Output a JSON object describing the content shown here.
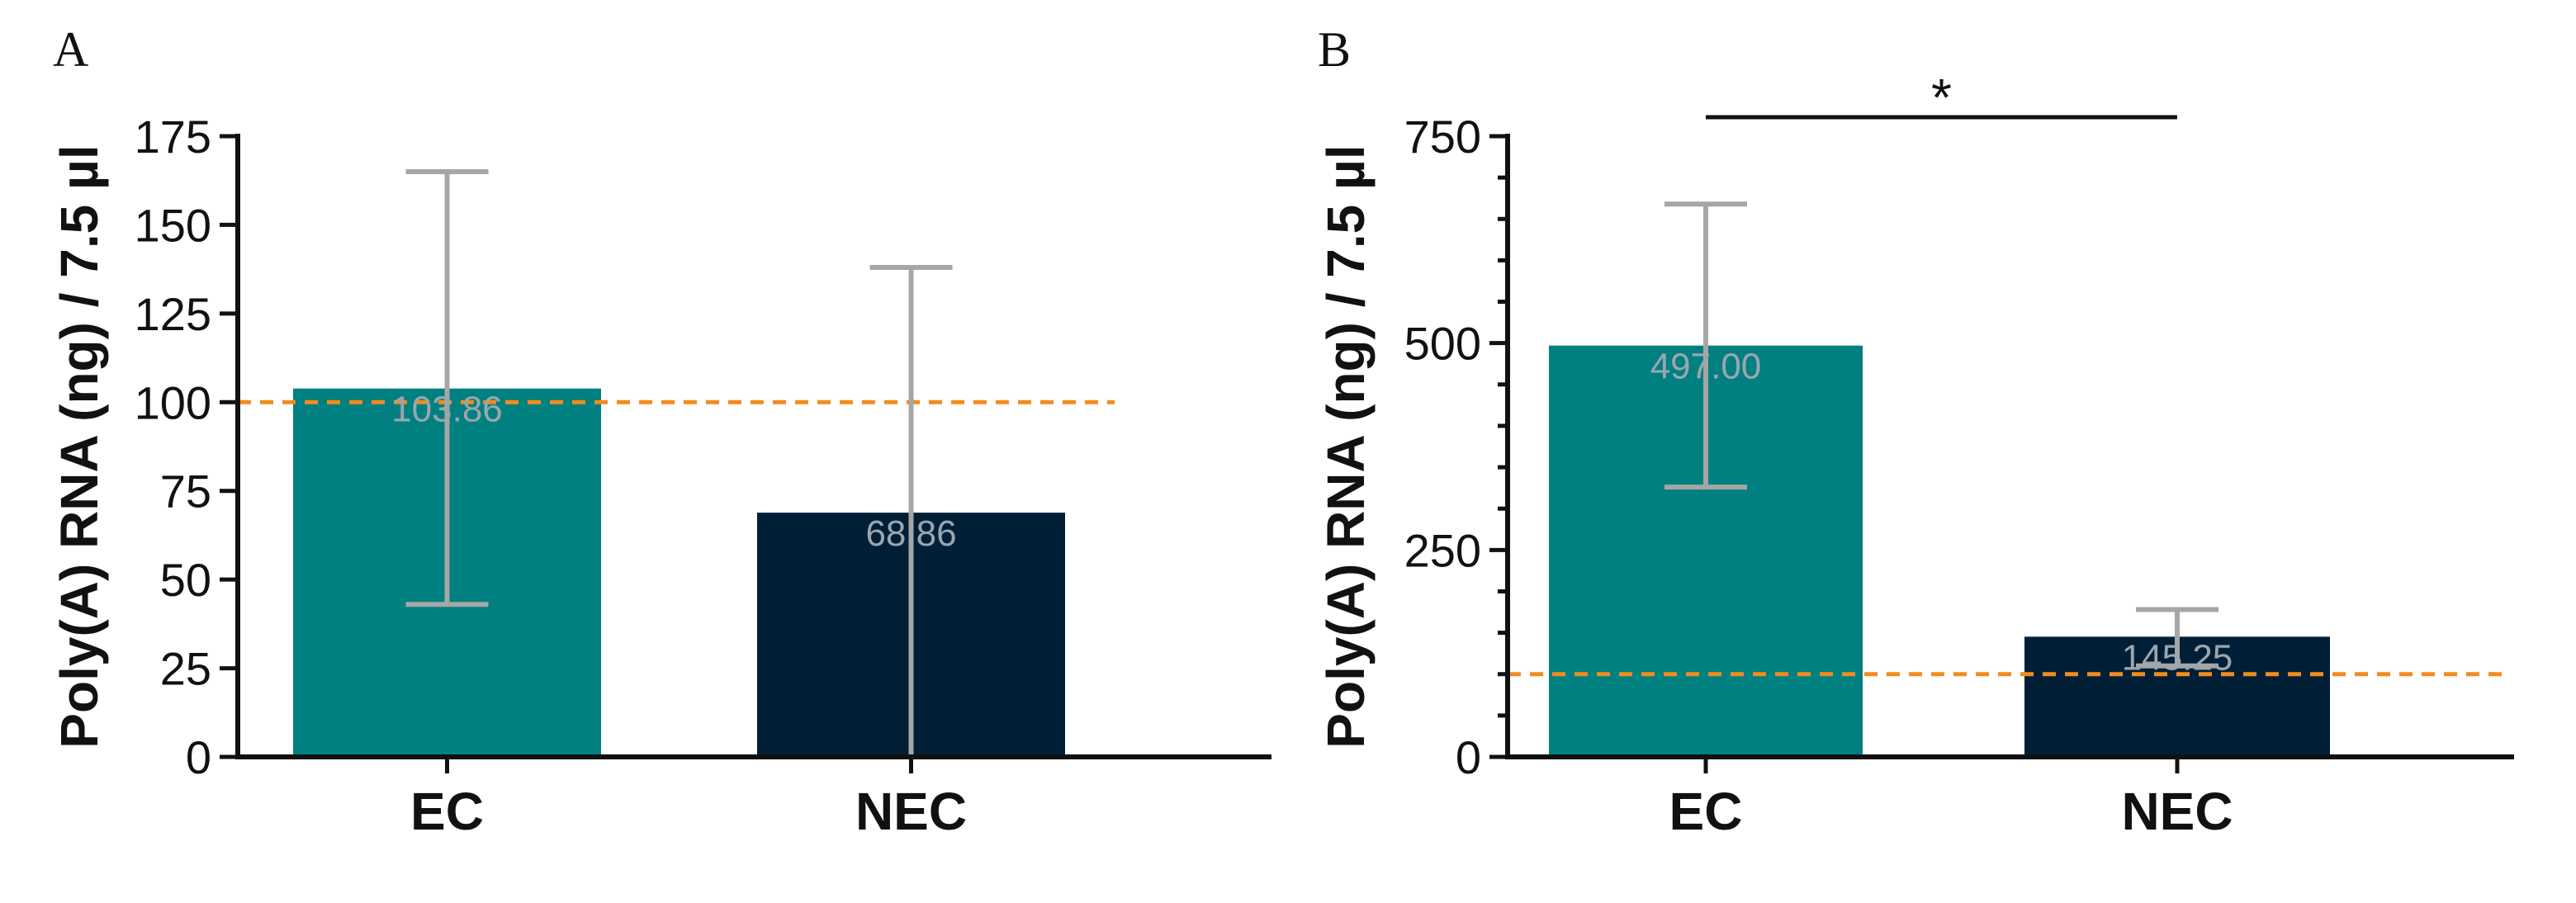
{
  "chart_data": [
    {
      "panel": "A",
      "type": "bar",
      "title": "",
      "xlabel": "",
      "ylabel": "Poly(A) RNA (ng) / 7.5 µl",
      "ylim": [
        0,
        175
      ],
      "yticks": [
        0,
        25,
        50,
        75,
        100,
        125,
        150,
        175
      ],
      "categories": [
        "EC",
        "NEC"
      ],
      "values": [
        103.86,
        68.86
      ],
      "value_labels": [
        "103.86",
        "68.86"
      ],
      "error_low": [
        43,
        0
      ],
      "error_high": [
        165,
        138
      ],
      "bar_colors": [
        "#008080",
        "#001f36"
      ],
      "threshold": 100,
      "threshold_color": "#f28c1e",
      "significance": null
    },
    {
      "panel": "B",
      "type": "bar",
      "title": "",
      "xlabel": "",
      "ylabel": "Poly(A) RNA (ng) / 7.5 µl",
      "ylim": [
        0,
        750
      ],
      "yticks": [
        0,
        250,
        500,
        750
      ],
      "categories": [
        "EC",
        "NEC"
      ],
      "values": [
        497.0,
        145.25
      ],
      "value_labels": [
        "497.00",
        "145.25"
      ],
      "error_low": [
        326,
        110
      ],
      "error_high": [
        668,
        178
      ],
      "bar_colors": [
        "#008080",
        "#001f36"
      ],
      "threshold": 100,
      "threshold_color": "#f28c1e",
      "significance": {
        "between": [
          "EC",
          "NEC"
        ],
        "label": "*"
      }
    }
  ]
}
